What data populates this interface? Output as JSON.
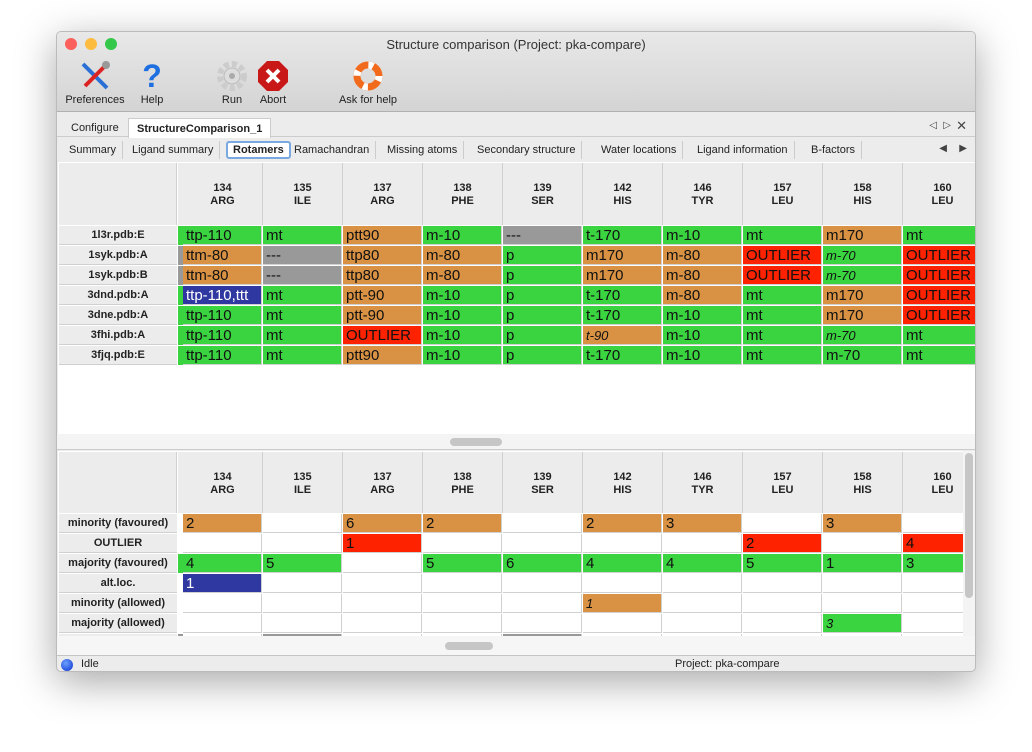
{
  "window": {
    "title": "Structure comparison (Project: pka-compare)"
  },
  "toolbar": [
    {
      "label": "Preferences",
      "icon": "preferences-icon"
    },
    {
      "label": "Help",
      "icon": "help-icon"
    },
    {
      "label": "Run",
      "icon": "run-gear-icon"
    },
    {
      "label": "Abort",
      "icon": "abort-icon"
    },
    {
      "label": "Ask for help",
      "icon": "lifebuoy-icon"
    }
  ],
  "tabs": [
    "Configure",
    "StructureComparison_1"
  ],
  "active_tab": "StructureComparison_1",
  "subtabs": [
    "Summary",
    "Ligand summary",
    "Rotamers",
    "Ramachandran",
    "Missing atoms",
    "Secondary structure",
    "Water locations",
    "Ligand information",
    "B-factors"
  ],
  "active_subtab": "Rotamers",
  "colors": {
    "green": "#3ad440",
    "orange": "#d99243",
    "red": "#ff2200",
    "gray": "#999999",
    "blue": "#2e38a0",
    "none": "#ffffff"
  },
  "columns": [
    {
      "num": "134",
      "res": "ARG"
    },
    {
      "num": "135",
      "res": "ILE"
    },
    {
      "num": "137",
      "res": "ARG"
    },
    {
      "num": "138",
      "res": "PHE"
    },
    {
      "num": "139",
      "res": "SER"
    },
    {
      "num": "142",
      "res": "HIS"
    },
    {
      "num": "146",
      "res": "TYR"
    },
    {
      "num": "157",
      "res": "LEU"
    },
    {
      "num": "158",
      "res": "HIS"
    },
    {
      "num": "160",
      "res": "LEU"
    }
  ],
  "rotamers": [
    {
      "label": "1l3r.pdb:E",
      "strip": "green",
      "cells": [
        [
          "ttp-110",
          "green"
        ],
        [
          "mt",
          "green"
        ],
        [
          "ptt90",
          "orange"
        ],
        [
          "m-10",
          "green"
        ],
        [
          "---",
          "gray"
        ],
        [
          "t-170",
          "green"
        ],
        [
          "m-10",
          "green"
        ],
        [
          "mt",
          "green"
        ],
        [
          "m170",
          "orange"
        ],
        [
          "mt",
          "green"
        ]
      ]
    },
    {
      "label": "1syk.pdb:A",
      "strip": "gray",
      "cells": [
        [
          "ttm-80",
          "orange"
        ],
        [
          "---",
          "gray"
        ],
        [
          "ttp80",
          "orange"
        ],
        [
          "m-80",
          "orange"
        ],
        [
          "p",
          "green"
        ],
        [
          "m170",
          "orange"
        ],
        [
          "m-80",
          "orange"
        ],
        [
          "OUTLIER",
          "red"
        ],
        [
          "m-70",
          "green",
          1
        ],
        [
          "OUTLIER",
          "red"
        ]
      ]
    },
    {
      "label": "1syk.pdb:B",
      "strip": "gray",
      "cells": [
        [
          "ttm-80",
          "orange"
        ],
        [
          "---",
          "gray"
        ],
        [
          "ttp80",
          "orange"
        ],
        [
          "m-80",
          "orange"
        ],
        [
          "p",
          "green"
        ],
        [
          "m170",
          "orange"
        ],
        [
          "m-80",
          "orange"
        ],
        [
          "OUTLIER",
          "red"
        ],
        [
          "m-70",
          "green",
          1
        ],
        [
          "OUTLIER",
          "red"
        ]
      ]
    },
    {
      "label": "3dnd.pdb:A",
      "strip": "green",
      "cells": [
        [
          "ttp-110,ttt",
          "blue"
        ],
        [
          "mt",
          "green"
        ],
        [
          "ptt-90",
          "orange"
        ],
        [
          "m-10",
          "green"
        ],
        [
          "p",
          "green"
        ],
        [
          "t-170",
          "green"
        ],
        [
          "m-80",
          "orange"
        ],
        [
          "mt",
          "green"
        ],
        [
          "m170",
          "orange"
        ],
        [
          "OUTLIER",
          "red"
        ]
      ]
    },
    {
      "label": "3dne.pdb:A",
      "strip": "green",
      "cells": [
        [
          "ttp-110",
          "green"
        ],
        [
          "mt",
          "green"
        ],
        [
          "ptt-90",
          "orange"
        ],
        [
          "m-10",
          "green"
        ],
        [
          "p",
          "green"
        ],
        [
          "t-170",
          "green"
        ],
        [
          "m-10",
          "green"
        ],
        [
          "mt",
          "green"
        ],
        [
          "m170",
          "orange"
        ],
        [
          "OUTLIER",
          "red"
        ]
      ]
    },
    {
      "label": "3fhi.pdb:A",
      "strip": "green",
      "cells": [
        [
          "ttp-110",
          "green"
        ],
        [
          "mt",
          "green"
        ],
        [
          "OUTLIER",
          "red"
        ],
        [
          "m-10",
          "green"
        ],
        [
          "p",
          "green"
        ],
        [
          "t-90",
          "orange",
          1
        ],
        [
          "m-10",
          "green"
        ],
        [
          "mt",
          "green"
        ],
        [
          "m-70",
          "green",
          1
        ],
        [
          "mt",
          "green"
        ]
      ]
    },
    {
      "label": "3fjq.pdb:E",
      "strip": "green",
      "cells": [
        [
          "ttp-110",
          "green"
        ],
        [
          "mt",
          "green"
        ],
        [
          "ptt90",
          "orange"
        ],
        [
          "m-10",
          "green"
        ],
        [
          "p",
          "green"
        ],
        [
          "t-170",
          "green"
        ],
        [
          "m-10",
          "green"
        ],
        [
          "mt",
          "green"
        ],
        [
          "m-70",
          "green"
        ],
        [
          "mt",
          "green"
        ]
      ]
    }
  ],
  "summary": [
    {
      "label": "minority (favoured)",
      "strip": "none",
      "cells": [
        [
          "2",
          "orange"
        ],
        [
          "",
          "none"
        ],
        [
          "6",
          "orange"
        ],
        [
          "2",
          "orange"
        ],
        [
          "",
          "none"
        ],
        [
          "2",
          "orange"
        ],
        [
          "3",
          "orange"
        ],
        [
          "",
          "none"
        ],
        [
          "3",
          "orange"
        ],
        [
          "",
          "none"
        ]
      ]
    },
    {
      "label": "OUTLIER",
      "strip": "none",
      "cells": [
        [
          "",
          "none"
        ],
        [
          "",
          "none"
        ],
        [
          "1",
          "red"
        ],
        [
          "",
          "none"
        ],
        [
          "",
          "none"
        ],
        [
          "",
          "none"
        ],
        [
          "",
          "none"
        ],
        [
          "2",
          "red"
        ],
        [
          "",
          "none"
        ],
        [
          "4",
          "red"
        ]
      ]
    },
    {
      "label": "majority (favoured)",
      "strip": "green",
      "cells": [
        [
          "4",
          "green"
        ],
        [
          "5",
          "green"
        ],
        [
          "",
          "none"
        ],
        [
          "5",
          "green"
        ],
        [
          "6",
          "green"
        ],
        [
          "4",
          "green"
        ],
        [
          "4",
          "green"
        ],
        [
          "5",
          "green"
        ],
        [
          "1",
          "green"
        ],
        [
          "3",
          "green"
        ]
      ]
    },
    {
      "label": "alt.loc.",
      "strip": "none",
      "cells": [
        [
          "1",
          "blue"
        ],
        [
          "",
          "none"
        ],
        [
          "",
          "none"
        ],
        [
          "",
          "none"
        ],
        [
          "",
          "none"
        ],
        [
          "",
          "none"
        ],
        [
          "",
          "none"
        ],
        [
          "",
          "none"
        ],
        [
          "",
          "none"
        ],
        [
          "",
          "none"
        ]
      ]
    },
    {
      "label": "minority (allowed)",
      "strip": "none",
      "cells": [
        [
          "",
          "none"
        ],
        [
          "",
          "none"
        ],
        [
          "",
          "none"
        ],
        [
          "",
          "none"
        ],
        [
          "",
          "none"
        ],
        [
          "1",
          "orange",
          1
        ],
        [
          "",
          "none"
        ],
        [
          "",
          "none"
        ],
        [
          "",
          "none"
        ],
        [
          "",
          "none"
        ]
      ]
    },
    {
      "label": "majority (allowed)",
      "strip": "none",
      "cells": [
        [
          "",
          "none"
        ],
        [
          "",
          "none"
        ],
        [
          "",
          "none"
        ],
        [
          "",
          "none"
        ],
        [
          "",
          "none"
        ],
        [
          "",
          "none"
        ],
        [
          "",
          "none"
        ],
        [
          "",
          "none"
        ],
        [
          "3",
          "green",
          1
        ],
        [
          "",
          "none"
        ]
      ]
    }
  ],
  "status": {
    "state": "Idle",
    "project": "Project: pka-compare"
  }
}
